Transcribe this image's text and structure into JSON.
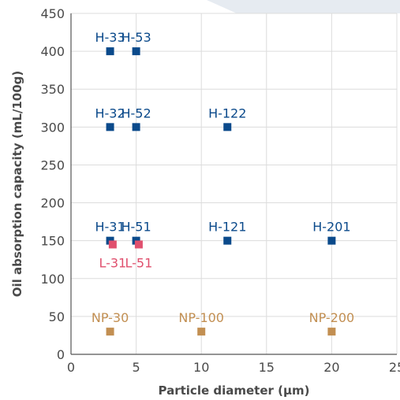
{
  "chart_data": {
    "type": "scatter",
    "title": "",
    "xlabel": "Particle diameter (µm)",
    "ylabel": "Oil absorption capacity (mL/100g)",
    "xlim": [
      0,
      25
    ],
    "ylim": [
      0,
      450
    ],
    "xticks": [
      0,
      5,
      10,
      15,
      20,
      25
    ],
    "yticks": [
      0,
      50,
      100,
      150,
      200,
      250,
      300,
      350,
      400,
      450
    ],
    "grid": true,
    "colors": {
      "H": "#0b4a8b",
      "L": "#e0506e",
      "NP": "#c28f52"
    },
    "series": [
      {
        "group": "H",
        "points": [
          {
            "label": "H-33",
            "x": 3,
            "y": 400
          },
          {
            "label": "H-53",
            "x": 5,
            "y": 400
          },
          {
            "label": "H-32",
            "x": 3,
            "y": 300
          },
          {
            "label": "H-52",
            "x": 5,
            "y": 300
          },
          {
            "label": "H-122",
            "x": 12,
            "y": 300
          },
          {
            "label": "H-31",
            "x": 3,
            "y": 150
          },
          {
            "label": "H-51",
            "x": 5,
            "y": 150
          },
          {
            "label": "H-121",
            "x": 12,
            "y": 150
          },
          {
            "label": "H-201",
            "x": 20,
            "y": 150
          }
        ]
      },
      {
        "group": "L",
        "points": [
          {
            "label": "L-31",
            "x": 3.2,
            "y": 145
          },
          {
            "label": "L-51",
            "x": 5.2,
            "y": 145
          }
        ]
      },
      {
        "group": "NP",
        "points": [
          {
            "label": "NP-30",
            "x": 3,
            "y": 30
          },
          {
            "label": "NP-100",
            "x": 10,
            "y": 30
          },
          {
            "label": "NP-200",
            "x": 20,
            "y": 30
          }
        ]
      }
    ]
  }
}
